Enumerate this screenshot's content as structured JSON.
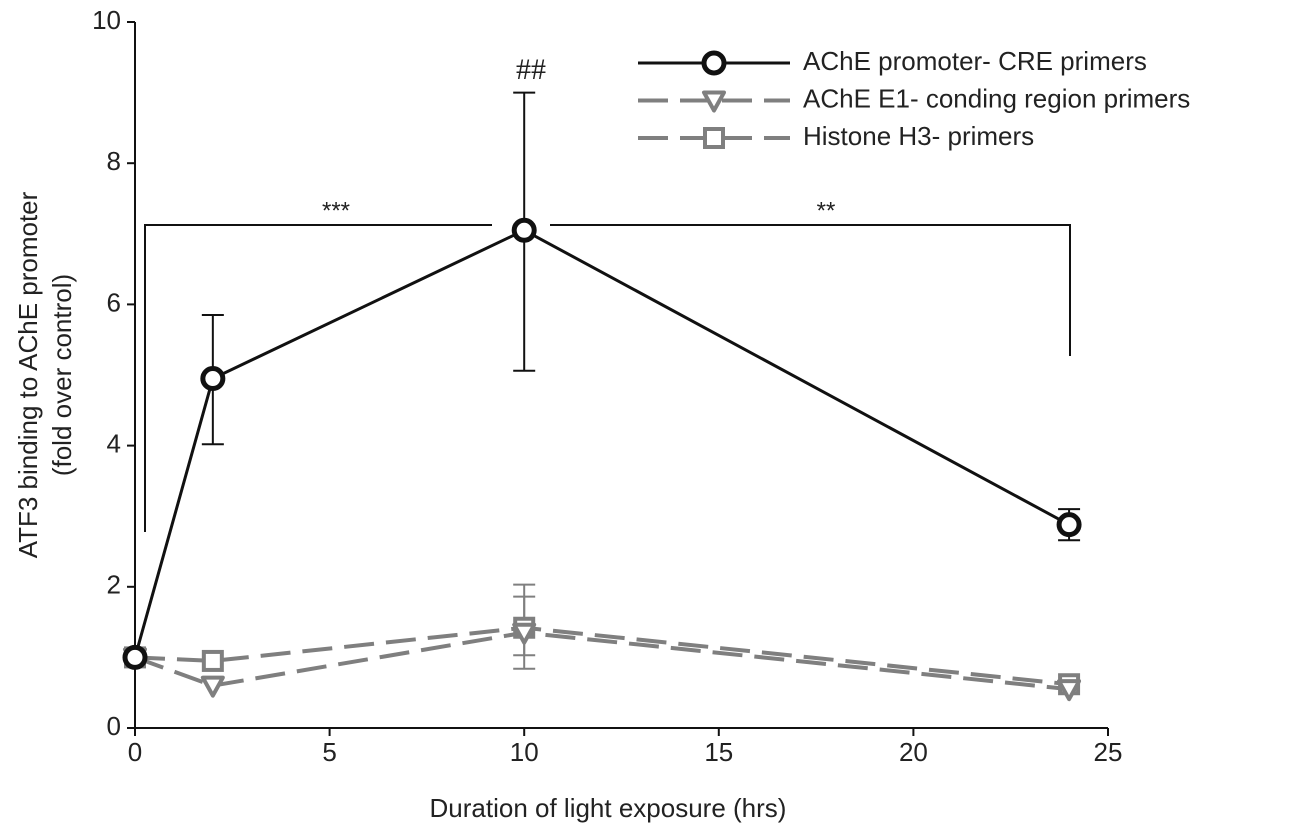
{
  "chart_data": {
    "type": "line",
    "xlabel": "Duration of light exposure (hrs)",
    "ylabel": [
      "ATF3 binding to AChE promoter",
      "(fold over control)"
    ],
    "x": [
      0,
      2,
      10,
      24
    ],
    "xlim": [
      0,
      25
    ],
    "xticks": [
      0,
      5,
      10,
      15,
      20,
      25
    ],
    "ylim": [
      0,
      10
    ],
    "yticks": [
      0,
      2,
      4,
      6,
      8,
      10
    ],
    "legend": "upper right",
    "series": [
      {
        "name": "AChE promoter- CRE primers",
        "color": "#111111",
        "marker": "circle",
        "dash": "solid",
        "values": [
          1.0,
          4.95,
          7.05,
          2.88
        ],
        "lower": [
          null,
          4.02,
          5.06,
          2.66
        ],
        "upper": [
          null,
          5.85,
          9.0,
          3.1
        ]
      },
      {
        "name": "AChE E1- conding region primers",
        "color": "#7f7f7f",
        "marker": "triangle",
        "dash": "dashed",
        "values": [
          1.0,
          0.6,
          1.35,
          0.55
        ],
        "lower": [
          null,
          null,
          0.84,
          null
        ],
        "upper": [
          null,
          null,
          2.03,
          null
        ]
      },
      {
        "name": "Histone H3- primers",
        "color": "#7f7f7f",
        "marker": "square",
        "dash": "dashed",
        "values": [
          1.0,
          0.95,
          1.42,
          0.62
        ],
        "lower": [
          null,
          null,
          1.03,
          null
        ],
        "upper": [
          null,
          null,
          1.86,
          null
        ]
      }
    ],
    "annotations": [
      "***",
      "**",
      "##"
    ]
  }
}
